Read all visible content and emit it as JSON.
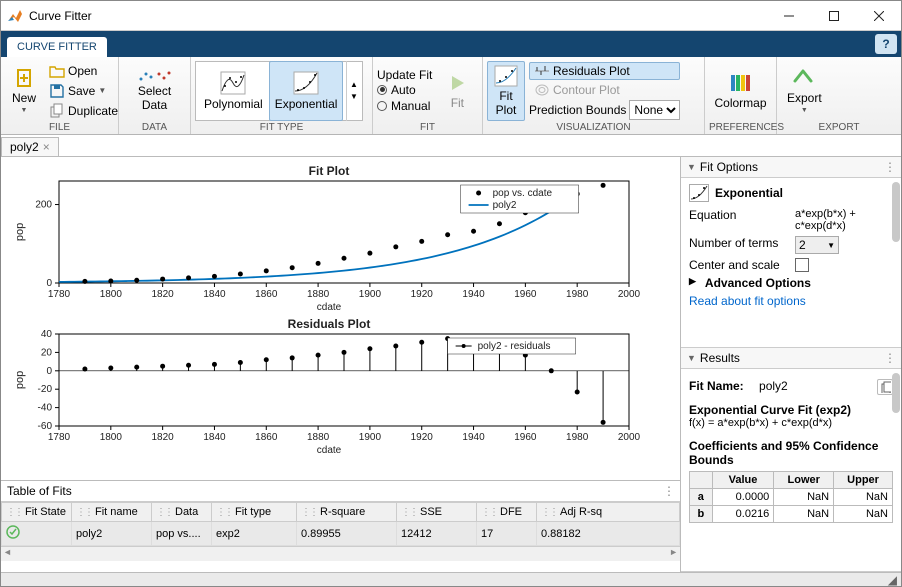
{
  "window": {
    "title": "Curve Fitter"
  },
  "tabstrip": {
    "active": "CURVE FITTER"
  },
  "toolstrip": {
    "file": {
      "group_label": "FILE",
      "new": "New",
      "open": "Open",
      "save": "Save",
      "duplicate": "Duplicate"
    },
    "data": {
      "group_label": "DATA",
      "select_data": "Select\nData"
    },
    "fittype": {
      "group_label": "FIT TYPE",
      "polynomial": "Polynomial",
      "exponential": "Exponential"
    },
    "fit": {
      "group_label": "FIT",
      "update_fit": "Update Fit",
      "auto": "Auto",
      "manual": "Manual",
      "fit_btn": "Fit"
    },
    "viz": {
      "group_label": "VISUALIZATION",
      "fit_plot": "Fit\nPlot",
      "residuals": "Residuals Plot",
      "contour": "Contour Plot",
      "pred_bounds": "Prediction Bounds",
      "pred_value": "None"
    },
    "prefs": {
      "group_label": "PREFERENCES",
      "colormap": "Colormap"
    },
    "export": {
      "group_label": "EXPORT",
      "export": "Export"
    }
  },
  "doctab": {
    "name": "poly2"
  },
  "fitplot": {
    "title": "Fit Plot",
    "xlabel": "cdate",
    "ylabel": "pop",
    "xlim": [
      1780,
      2000
    ],
    "xticks": [
      1780,
      1800,
      1820,
      1840,
      1860,
      1880,
      1900,
      1920,
      1940,
      1960,
      1980,
      2000
    ],
    "ylim": [
      0,
      260
    ],
    "yticks": [
      0,
      200
    ],
    "scatter_x": [
      1790,
      1800,
      1810,
      1820,
      1830,
      1840,
      1850,
      1860,
      1870,
      1880,
      1890,
      1900,
      1910,
      1920,
      1930,
      1940,
      1950,
      1960,
      1970,
      1980,
      1990
    ],
    "scatter_y": [
      4,
      5,
      7,
      10,
      13,
      17,
      23,
      31,
      39,
      50,
      63,
      76,
      92,
      106,
      123,
      132,
      151,
      179,
      203,
      227,
      249
    ],
    "line_color": "#0072bd",
    "marker_color": "#000000",
    "legend": {
      "s1": "pop vs. cdate",
      "s2": "poly2"
    }
  },
  "residplot": {
    "title": "Residuals Plot",
    "xlabel": "cdate",
    "ylabel": "pop",
    "xlim": [
      1780,
      2000
    ],
    "xticks": [
      1780,
      1800,
      1820,
      1840,
      1860,
      1880,
      1900,
      1920,
      1940,
      1960,
      1980,
      2000
    ],
    "ylim": [
      -60,
      40
    ],
    "yticks": [
      -60,
      -40,
      -20,
      0,
      20,
      40
    ],
    "stem_x": [
      1790,
      1800,
      1810,
      1820,
      1830,
      1840,
      1850,
      1860,
      1870,
      1880,
      1890,
      1900,
      1910,
      1920,
      1930,
      1940,
      1950,
      1960,
      1970,
      1980,
      1990
    ],
    "stem_y": [
      2,
      3,
      4,
      5,
      6,
      7,
      9,
      12,
      14,
      17,
      20,
      24,
      27,
      31,
      35,
      32,
      28,
      17,
      0,
      -23,
      -56
    ],
    "legend": "poly2 - residuals"
  },
  "table_of_fits": {
    "title": "Table of Fits",
    "columns": [
      "Fit State",
      "Fit name",
      "Data",
      "Fit type",
      "R-square",
      "SSE",
      "DFE",
      "Adj R-sq"
    ],
    "row": {
      "state": "ok",
      "name": "poly2",
      "data": "pop vs....",
      "type": "exp2",
      "r2": "0.89955",
      "sse": "12412",
      "dfe": "17",
      "adjr2": "0.88182"
    }
  },
  "fit_options": {
    "header": "Fit Options",
    "type": "Exponential",
    "equation_label": "Equation",
    "equation": "a*exp(b*x) + c*exp(d*x)",
    "nterms_label": "Number of terms",
    "nterms": "2",
    "center_label": "Center and scale",
    "advanced": "Advanced Options",
    "readmore": "Read about fit options"
  },
  "results": {
    "header": "Results",
    "fitname_label": "Fit Name:",
    "fitname": "poly2",
    "curve_title": "Exponential Curve Fit (exp2)",
    "fx": "f(x) = a*exp(b*x) + c*exp(d*x)",
    "coeff_title": "Coefficients and 95% Confidence Bounds",
    "cols": {
      "value": "Value",
      "lower": "Lower",
      "upper": "Upper"
    },
    "rows": [
      {
        "p": "a",
        "v": "0.0000",
        "l": "NaN",
        "u": "NaN"
      },
      {
        "p": "b",
        "v": "0.0216",
        "l": "NaN",
        "u": "NaN"
      }
    ]
  }
}
